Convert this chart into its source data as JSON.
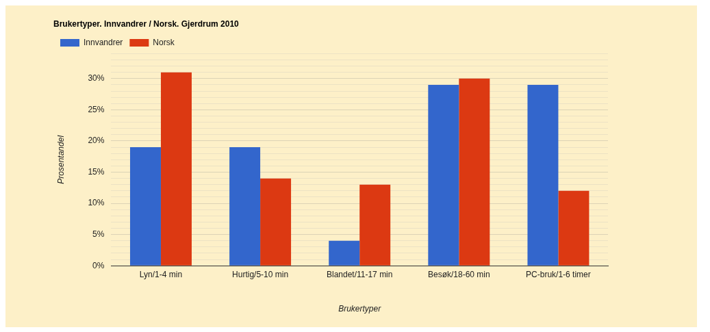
{
  "chart_data": {
    "type": "bar",
    "title": "Brukertyper. Innvandrer / Norsk. Gjerdrum 2010",
    "xlabel": "Brukertyper",
    "ylabel": "Prosentandel",
    "categories": [
      "Lyn/1-4 min",
      "Hurtig/5-10 min",
      "Blandet/11-17 min",
      "Besøk/18-60 min",
      "PC-bruk/1-6 timer"
    ],
    "series": [
      {
        "name": "Innvandrer",
        "color": "#3366cc",
        "values": [
          19,
          19,
          4,
          29,
          29
        ]
      },
      {
        "name": "Norsk",
        "color": "#dc3912",
        "values": [
          31,
          14,
          13,
          30,
          12
        ]
      }
    ],
    "ylim": [
      0,
      34
    ],
    "yticks": [
      {
        "value": 0,
        "label": "0%"
      },
      {
        "value": 1,
        "label": null
      },
      {
        "value": 2,
        "label": null
      },
      {
        "value": 3,
        "label": null
      },
      {
        "value": 4,
        "label": null
      },
      {
        "value": 5,
        "label": "5%"
      },
      {
        "value": 6,
        "label": null
      },
      {
        "value": 7,
        "label": null
      },
      {
        "value": 8,
        "label": null
      },
      {
        "value": 9,
        "label": null
      },
      {
        "value": 10,
        "label": "10%"
      },
      {
        "value": 11,
        "label": null
      },
      {
        "value": 12,
        "label": null
      },
      {
        "value": 13,
        "label": null
      },
      {
        "value": 14,
        "label": null
      },
      {
        "value": 15,
        "label": "15%"
      },
      {
        "value": 16,
        "label": null
      },
      {
        "value": 17,
        "label": null
      },
      {
        "value": 18,
        "label": null
      },
      {
        "value": 19,
        "label": null
      },
      {
        "value": 20,
        "label": "20%"
      },
      {
        "value": 21,
        "label": null
      },
      {
        "value": 22,
        "label": null
      },
      {
        "value": 23,
        "label": null
      },
      {
        "value": 24,
        "label": null
      },
      {
        "value": 25,
        "label": "25%"
      },
      {
        "value": 26,
        "label": null
      },
      {
        "value": 27,
        "label": null
      },
      {
        "value": 28,
        "label": null
      },
      {
        "value": 29,
        "label": null
      },
      {
        "value": 30,
        "label": "30%"
      },
      {
        "value": 31,
        "label": null
      },
      {
        "value": 32,
        "label": null
      },
      {
        "value": 33,
        "label": null
      },
      {
        "value": 34,
        "label": null
      }
    ],
    "grid": "y",
    "legend": "top left"
  }
}
